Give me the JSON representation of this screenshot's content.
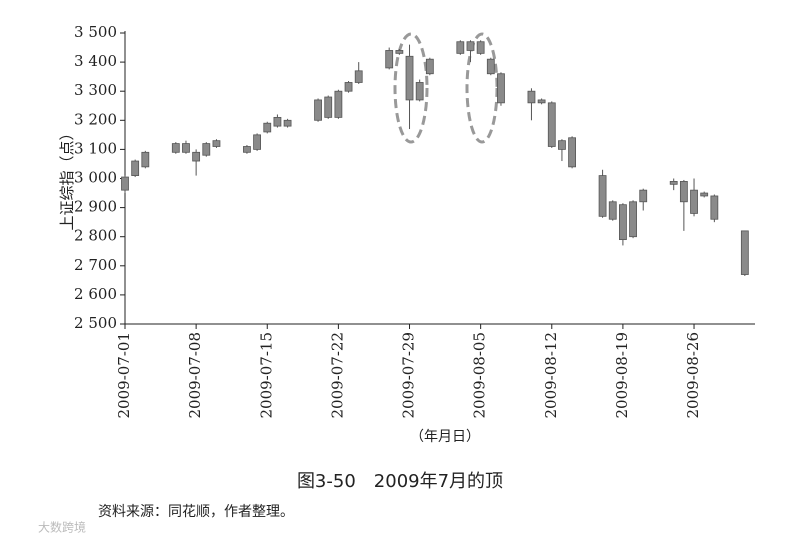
{
  "chart_data": {
    "type": "candlestick",
    "title": "图3-50　2009年7月的顶",
    "source": "资料来源：同花顺，作者整理。",
    "watermark": "大数跨境",
    "y_label": "上证综指（点）",
    "x_label": "（年月日）",
    "color": "#8a8a8a",
    "x": [
      "2009-07-01",
      "2009-07-02",
      "2009-07-03",
      "2009-07-06",
      "2009-07-07",
      "2009-07-08",
      "2009-07-09",
      "2009-07-10",
      "2009-07-13",
      "2009-07-14",
      "2009-07-15",
      "2009-07-16",
      "2009-07-17",
      "2009-07-20",
      "2009-07-21",
      "2009-07-22",
      "2009-07-23",
      "2009-07-24",
      "2009-07-27",
      "2009-07-28",
      "2009-07-29",
      "2009-07-30",
      "2009-07-31",
      "2009-08-03",
      "2009-08-04",
      "2009-08-05",
      "2009-08-06",
      "2009-08-07",
      "2009-08-10",
      "2009-08-11",
      "2009-08-12",
      "2009-08-13",
      "2009-08-14",
      "2009-08-17",
      "2009-08-18",
      "2009-08-19",
      "2009-08-20",
      "2009-08-21",
      "2009-08-24",
      "2009-08-25",
      "2009-08-26",
      "2009-08-27",
      "2009-08-28",
      "2009-08-31"
    ],
    "open": [
      2960,
      3010,
      3040,
      3090,
      3120,
      3090,
      3080,
      3110,
      3090,
      3100,
      3160,
      3180,
      3200,
      3200,
      3210,
      3210,
      3300,
      3330,
      3380,
      3430,
      3420,
      3270,
      3360,
      3430,
      3440,
      3470,
      3410,
      3360,
      3260,
      3270,
      3260,
      3100,
      3140,
      3010,
      2860,
      2910,
      2800,
      2920,
      2990,
      2990,
      2960,
      2950,
      2940,
      2820
    ],
    "high": [
      3010,
      3065,
      3095,
      3125,
      3130,
      3100,
      3125,
      3135,
      3115,
      3155,
      3195,
      3220,
      3205,
      3275,
      3285,
      3305,
      3335,
      3400,
      3450,
      3445,
      3460,
      3340,
      3415,
      3475,
      3475,
      3475,
      3415,
      3365,
      3310,
      3275,
      3265,
      3135,
      3145,
      3030,
      2925,
      2915,
      2925,
      2965,
      3000,
      2995,
      3000,
      2955,
      2945,
      2820
    ],
    "low": [
      2950,
      3005,
      3035,
      3085,
      3085,
      3010,
      3075,
      3105,
      3085,
      3095,
      3155,
      3175,
      3175,
      3195,
      3205,
      3205,
      3295,
      3325,
      3375,
      3425,
      3170,
      3265,
      3355,
      3425,
      3400,
      3425,
      3355,
      3250,
      3200,
      3255,
      3105,
      3060,
      3035,
      2865,
      2855,
      2770,
      2795,
      2890,
      2960,
      2820,
      2870,
      2935,
      2850,
      2665
    ],
    "close": [
      3005,
      3060,
      3090,
      3120,
      3090,
      3060,
      3120,
      3130,
      3110,
      3150,
      3190,
      3210,
      3180,
      3270,
      3280,
      3300,
      3330,
      3370,
      3440,
      3440,
      3270,
      3330,
      3410,
      3470,
      3470,
      3430,
      3360,
      3260,
      3300,
      3260,
      3110,
      3130,
      3040,
      2870,
      2920,
      2790,
      2920,
      2960,
      2980,
      2920,
      2880,
      2940,
      2860,
      2670
    ],
    "xlim": [
      "2009-07-01",
      "2009-09-01"
    ],
    "xticks": [
      "2009-07-01",
      "2009-07-08",
      "2009-07-15",
      "2009-07-22",
      "2009-07-29",
      "2009-08-05",
      "2009-08-12",
      "2009-08-19",
      "2009-08-26"
    ],
    "ylim": [
      2500,
      3500
    ],
    "yticks": [
      {
        "value": 2500,
        "label": "2 500"
      },
      {
        "value": 2600,
        "label": "2 600"
      },
      {
        "value": 2700,
        "label": "2 700"
      },
      {
        "value": 2800,
        "label": "2 800"
      },
      {
        "value": 2900,
        "label": "2 900"
      },
      {
        "value": 3000,
        "label": "3 000"
      },
      {
        "value": 3100,
        "label": "3 100"
      },
      {
        "value": 3200,
        "label": "3 200"
      },
      {
        "value": 3300,
        "label": "3 300"
      },
      {
        "value": 3400,
        "label": "3 400"
      },
      {
        "value": 3500,
        "label": "3 500"
      }
    ]
  }
}
